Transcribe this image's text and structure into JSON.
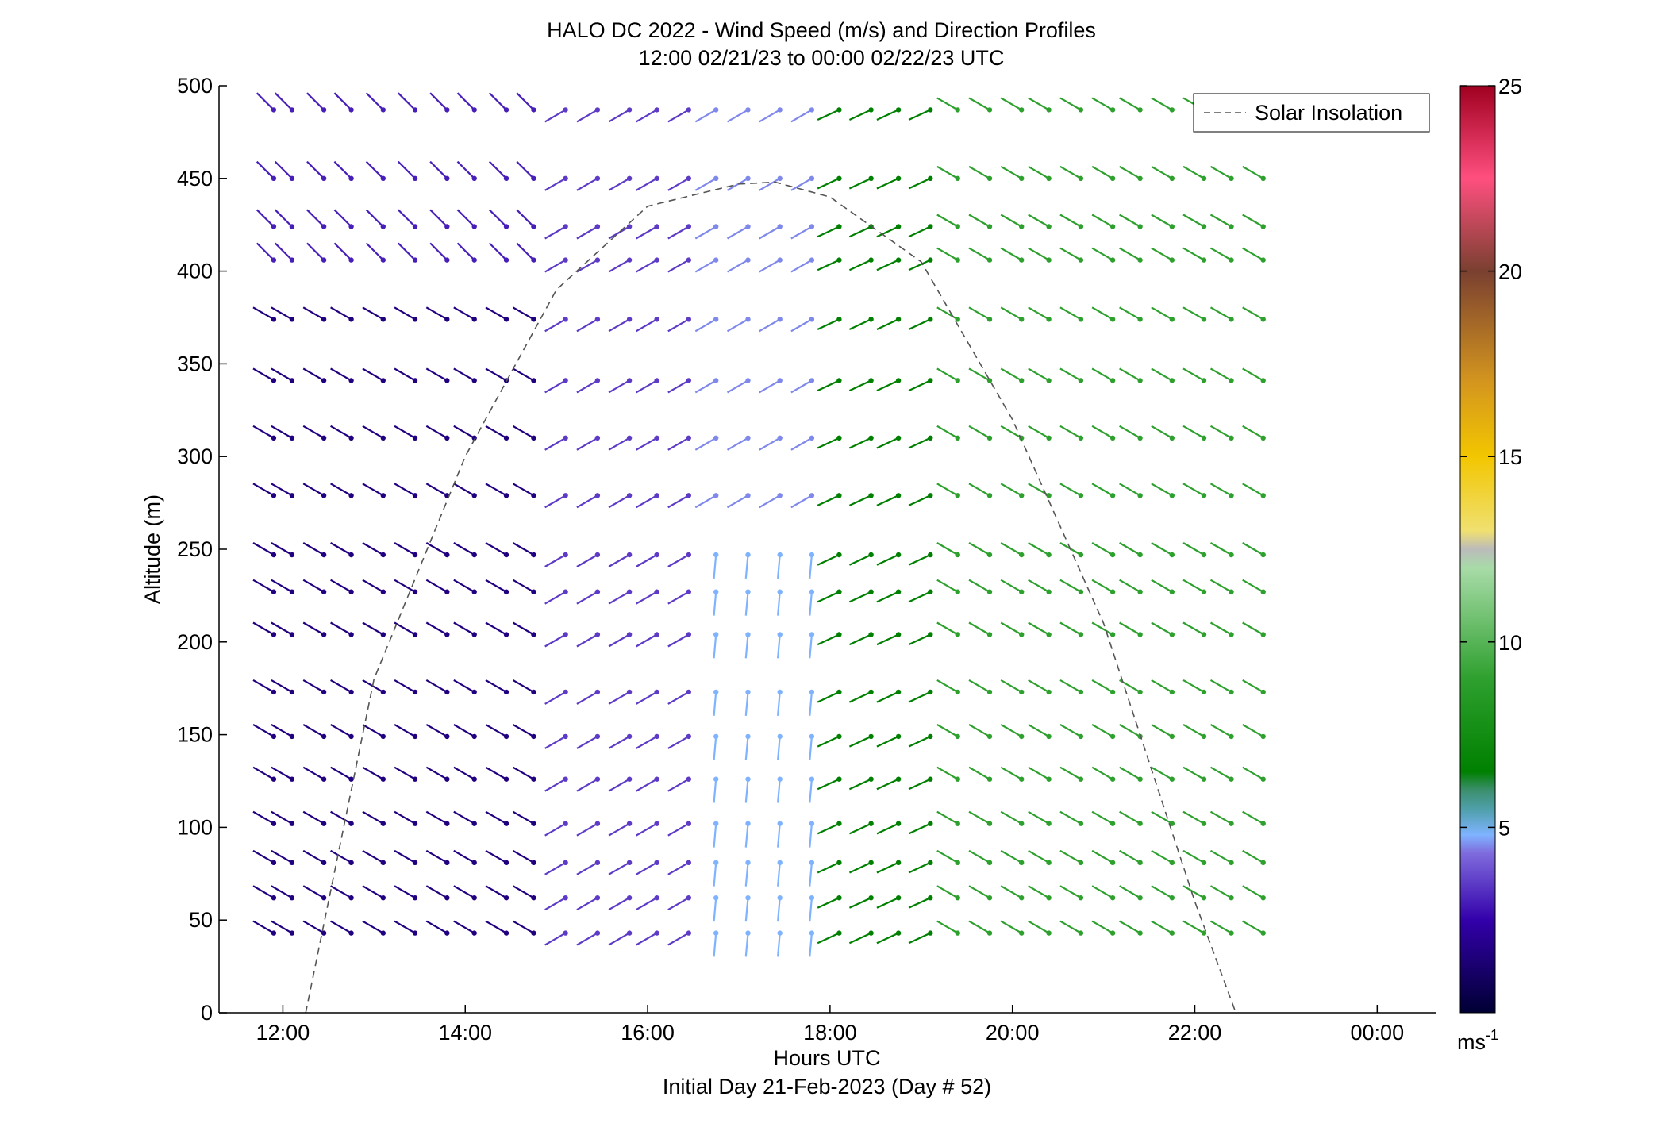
{
  "chart_data": {
    "type": "wind-barb",
    "title_line1": "HALO DC 2022 - Wind Speed (m/s) and Direction Profiles",
    "title_line2": "12:00 02/21/23 to 00:00 02/22/23  UTC",
    "xlabel": "Hours UTC",
    "xlabel_sub": "Initial Day 21-Feb-2023 (Day # 52)",
    "ylabel": "Altitude (m)",
    "xlim": [
      11.3,
      24.65
    ],
    "ylim": [
      0,
      500
    ],
    "x_ticks": [
      12,
      14,
      16,
      18,
      20,
      22,
      24
    ],
    "x_tick_labels": [
      "12:00",
      "14:00",
      "16:00",
      "18:00",
      "20:00",
      "22:00",
      "00:00"
    ],
    "y_ticks": [
      0,
      50,
      100,
      150,
      200,
      250,
      300,
      350,
      400,
      450,
      500
    ],
    "y_tick_labels": [
      "0",
      "50",
      "100",
      "150",
      "200",
      "250",
      "300",
      "350",
      "400",
      "450",
      "500"
    ],
    "colorbar": {
      "min": 0,
      "max": 25,
      "ticks": [
        5,
        10,
        15,
        20,
        25
      ],
      "tick_labels": [
        "5",
        "10",
        "15",
        "20",
        "25"
      ],
      "unit_label": "ms",
      "unit_exponent": "-1",
      "stops": [
        {
          "v": 0,
          "c": "#000033"
        },
        {
          "v": 2.5,
          "c": "#3300aa"
        },
        {
          "v": 4.3,
          "c": "#7f6bdd"
        },
        {
          "v": 4.8,
          "c": "#7fb3ff"
        },
        {
          "v": 5.5,
          "c": "#4e9fa9"
        },
        {
          "v": 6.0,
          "c": "#3c8f6e"
        },
        {
          "v": 6.5,
          "c": "#008000"
        },
        {
          "v": 9.0,
          "c": "#2ea02e"
        },
        {
          "v": 12.0,
          "c": "#a8dba8"
        },
        {
          "v": 12.5,
          "c": "#bbbbbb"
        },
        {
          "v": 13.0,
          "c": "#f0e070"
        },
        {
          "v": 15.0,
          "c": "#f2c600"
        },
        {
          "v": 17.0,
          "c": "#d4961e"
        },
        {
          "v": 20.0,
          "c": "#7a4030"
        },
        {
          "v": 22.5,
          "c": "#ff4f7f"
        },
        {
          "v": 25.0,
          "c": "#a00020"
        }
      ]
    },
    "legend": {
      "label": "Solar Insolation",
      "position": "top-right"
    },
    "solar_insolation": {
      "style": "dashed",
      "color": "#555555",
      "points": [
        [
          12.25,
          0
        ],
        [
          13.0,
          180
        ],
        [
          14.0,
          300
        ],
        [
          15.0,
          390
        ],
        [
          16.0,
          435
        ],
        [
          17.0,
          447
        ],
        [
          17.4,
          448
        ],
        [
          18.0,
          440
        ],
        [
          19.0,
          405
        ],
        [
          20.0,
          320
        ],
        [
          21.0,
          210
        ],
        [
          22.0,
          60
        ],
        [
          22.45,
          0
        ]
      ]
    },
    "time_columns": [
      11.9,
      12.1,
      12.45,
      12.75,
      13.1,
      13.45,
      13.8,
      14.1,
      14.45,
      14.75,
      15.1,
      15.45,
      15.8,
      16.1,
      16.45,
      16.75,
      17.1,
      17.45,
      17.8,
      18.1,
      18.45,
      18.75,
      19.1,
      19.4,
      19.75,
      20.1,
      20.4,
      20.75,
      21.1,
      21.4,
      21.75,
      22.1,
      22.4,
      22.75
    ],
    "altitudes": [
      43,
      62,
      81,
      102,
      126,
      149,
      173,
      204,
      227,
      247,
      279,
      310,
      341,
      374,
      406,
      424,
      450,
      487
    ],
    "wind_segments": [
      {
        "from_hour": 11.9,
        "to_hour": 14.75,
        "altitude_range": [
          40,
          380
        ],
        "speed_ms": 1.6,
        "direction_deg": 300
      },
      {
        "from_hour": 11.9,
        "to_hour": 14.75,
        "altitude_range": [
          400,
          500
        ],
        "speed_ms": 3.0,
        "direction_deg": 315
      },
      {
        "from_hour": 14.75,
        "to_hour": 16.5,
        "altitude_range": [
          40,
          500
        ],
        "speed_ms": 3.5,
        "direction_deg": 240
      },
      {
        "from_hour": 16.5,
        "to_hour": 17.8,
        "altitude_range": [
          40,
          250
        ],
        "speed_ms": 4.8,
        "direction_deg": 185
      },
      {
        "from_hour": 16.5,
        "to_hour": 17.8,
        "altitude_range": [
          260,
          500
        ],
        "speed_ms": 4.5,
        "direction_deg": 240
      },
      {
        "from_hour": 17.8,
        "to_hour": 19.1,
        "altitude_range": [
          40,
          500
        ],
        "speed_ms": 6.5,
        "direction_deg": 245
      },
      {
        "from_hour": 19.1,
        "to_hour": 22.75,
        "altitude_range": [
          40,
          500
        ],
        "speed_ms": 9.0,
        "direction_deg": 300
      }
    ]
  }
}
